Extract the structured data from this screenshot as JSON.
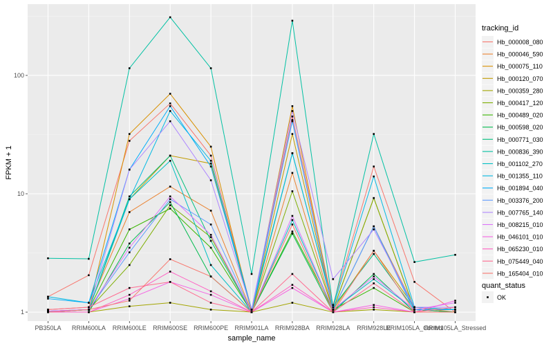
{
  "chart_data": {
    "type": "line",
    "xlabel": "sample_name",
    "ylabel": "FPKM + 1",
    "y_scale": "log10",
    "ylim": [
      0.84,
      400
    ],
    "y_ticks": [
      1,
      10,
      100
    ],
    "y_tick_labels": [
      "1",
      "10",
      "100"
    ],
    "grid": true,
    "legend_position": "right",
    "categories": [
      "PB350LA",
      "RRIM600LA",
      "RRIM600LE",
      "RRIM600SE",
      "RRIM600PE",
      "RRIM901LA",
      "RRIM928BA",
      "RRIM928LA",
      "RRIM928LE",
      "RRIM105LA_Control",
      "RRIM105LA_Stressed"
    ],
    "x_tick_labels": [
      "PB350LA",
      "RRIM600LA",
      "RRIM600LE",
      "RRIM600SE",
      "RRIM600PE",
      "RRIM901LA",
      "RRIM928BA",
      "RRIM928LA",
      "RRIM928LE",
      "RRIM105LA_Control",
      "RRIM105LA_Stressed"
    ],
    "color_legend_title": "tracking_id",
    "shape_legend_title": "quant_status",
    "shape_legend_items": [
      "OK"
    ],
    "series": [
      {
        "name": "Hb_000008_080",
        "color": "#F8766D",
        "values": [
          1.35,
          2.05,
          28,
          58,
          21,
          1.05,
          45,
          1.15,
          17,
          1.8,
          1.0
        ]
      },
      {
        "name": "Hb_000046_590",
        "color": "#EA8331",
        "values": [
          1.05,
          1.1,
          7,
          11.5,
          7.2,
          1.0,
          15,
          1.05,
          5.3,
          1.1,
          1.0
        ]
      },
      {
        "name": "Hb_000075_110",
        "color": "#D89000",
        "values": [
          1.02,
          1.05,
          32,
          70,
          25,
          1.0,
          55,
          1.05,
          9.2,
          1.05,
          1.0
        ]
      },
      {
        "name": "Hb_000120_070",
        "color": "#C09B00",
        "values": [
          1.02,
          1.05,
          9,
          21,
          18,
          1.0,
          32,
          1.05,
          3.3,
          1.1,
          1.05
        ]
      },
      {
        "name": "Hb_000359_280",
        "color": "#A3A500",
        "values": [
          1.0,
          1.0,
          1.12,
          1.2,
          1.05,
          1.0,
          1.2,
          1.0,
          1.05,
          1.0,
          1.0
        ]
      },
      {
        "name": "Hb_000417_120",
        "color": "#7CAE00",
        "values": [
          1.02,
          1.05,
          2.5,
          8.0,
          4.3,
          1.0,
          10.5,
          1.05,
          9.2,
          1.05,
          1.0
        ]
      },
      {
        "name": "Hb_000489_020",
        "color": "#39B600",
        "values": [
          1.0,
          1.05,
          5.0,
          7.5,
          3.5,
          1.0,
          4.8,
          1.05,
          1.6,
          1.0,
          1.0
        ]
      },
      {
        "name": "Hb_000598_020",
        "color": "#00BB4E",
        "values": [
          1.0,
          1.0,
          3.8,
          8.5,
          2.0,
          1.0,
          4.6,
          1.0,
          2.1,
          1.0,
          1.0
        ]
      },
      {
        "name": "Hb_000771_030",
        "color": "#00BF7D",
        "values": [
          1.0,
          1.05,
          9.5,
          21,
          4.0,
          1.0,
          22,
          1.1,
          3.1,
          1.05,
          1.0
        ]
      },
      {
        "name": "Hb_000836_390",
        "color": "#00C1A3",
        "values": [
          2.85,
          2.82,
          115,
          310,
          115,
          2.1,
          290,
          1.1,
          32,
          2.65,
          3.05
        ]
      },
      {
        "name": "Hb_001102_270",
        "color": "#00BFC4",
        "values": [
          1.0,
          1.05,
          9.0,
          19,
          2.5,
          1.0,
          6.0,
          1.05,
          1.9,
          1.05,
          1.05
        ]
      },
      {
        "name": "Hb_001355_110",
        "color": "#00B9E3",
        "values": [
          1.35,
          1.2,
          9.0,
          50,
          19,
          1.05,
          22,
          1.1,
          14,
          1.1,
          1.05
        ]
      },
      {
        "name": "Hb_001894_040",
        "color": "#00ADFA",
        "values": [
          1.3,
          1.2,
          16,
          55,
          17,
          1.05,
          41,
          1.05,
          5.3,
          1.05,
          1.05
        ]
      },
      {
        "name": "Hb_003376_200",
        "color": "#619CFF",
        "values": [
          1.02,
          1.05,
          3.2,
          9.0,
          5.5,
          1.0,
          42,
          1.05,
          5.3,
          1.0,
          1.0
        ]
      },
      {
        "name": "Hb_007765_140",
        "color": "#AE87FF",
        "values": [
          1.02,
          1.05,
          16,
          41,
          13,
          1.05,
          50,
          1.9,
          5.0,
          1.1,
          1.1
        ]
      },
      {
        "name": "Hb_008215_010",
        "color": "#DB72FB",
        "values": [
          1.02,
          1.05,
          3.5,
          9.5,
          4.5,
          1.0,
          6.5,
          1.05,
          2.0,
          1.05,
          1.2
        ]
      },
      {
        "name": "Hb_046101_010",
        "color": "#F564E3",
        "values": [
          1.0,
          1.0,
          1.3,
          1.8,
          1.4,
          1.0,
          1.6,
          1.0,
          1.15,
          1.0,
          1.25
        ]
      },
      {
        "name": "Hb_065230_010",
        "color": "#FF61C3",
        "values": [
          1.0,
          1.0,
          1.4,
          2.2,
          1.5,
          1.0,
          1.7,
          1.0,
          1.1,
          1.0,
          1.0
        ]
      },
      {
        "name": "Hb_075449_040",
        "color": "#FF6C91",
        "values": [
          1.05,
          1.1,
          1.6,
          1.8,
          1.2,
          1.0,
          2.1,
          1.0,
          1.75,
          1.0,
          1.1
        ]
      },
      {
        "name": "Hb_165404_010",
        "color": "#F8766D",
        "values": [
          1.0,
          1.05,
          1.25,
          2.8,
          2.0,
          1.0,
          5.5,
          1.0,
          3.3,
          1.0,
          1.0
        ]
      }
    ]
  }
}
